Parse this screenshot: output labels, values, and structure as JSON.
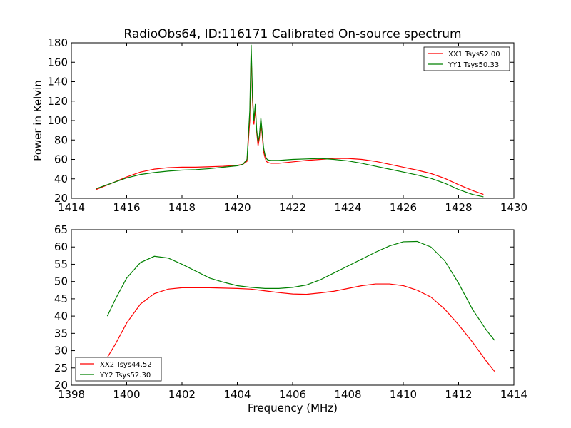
{
  "figure_title": "RadioObs64, ID:116171 Calibrated On-source spectrum",
  "colors": {
    "xx": "#ff0000",
    "yy": "#008000",
    "axis": "#000000"
  },
  "chart_data": [
    {
      "type": "line",
      "title": "RadioObs64, ID:116171 Calibrated On-source spectrum",
      "xlabel": "",
      "ylabel": "Power in Kelvin",
      "xlim": [
        1414,
        1430
      ],
      "ylim": [
        20,
        180
      ],
      "xticks": [
        1414,
        1416,
        1418,
        1420,
        1422,
        1424,
        1426,
        1428,
        1430
      ],
      "yticks": [
        20,
        40,
        60,
        80,
        100,
        120,
        140,
        160,
        180
      ],
      "legend_position": "top-right",
      "grid": false,
      "series": [
        {
          "name": "XX1 Tsys52.00",
          "color": "#ff0000",
          "x": [
            1414.9,
            1415.5,
            1416,
            1416.5,
            1417,
            1417.5,
            1418,
            1418.5,
            1419,
            1419.5,
            1420,
            1420.2,
            1420.35,
            1420.45,
            1420.5,
            1420.55,
            1420.6,
            1420.65,
            1420.7,
            1420.75,
            1420.8,
            1420.85,
            1420.9,
            1420.95,
            1421,
            1421.05,
            1421.1,
            1421.2,
            1421.5,
            1422,
            1422.5,
            1423,
            1423.5,
            1424,
            1424.5,
            1425,
            1425.5,
            1426,
            1426.5,
            1427,
            1427.5,
            1428,
            1428.5,
            1428.9
          ],
          "values": [
            29,
            36,
            42,
            47,
            50,
            51.5,
            52,
            52,
            52.5,
            53,
            54,
            55,
            58,
            100,
            170,
            120,
            96,
            112,
            88,
            74,
            82,
            100,
            85,
            68,
            62,
            58,
            57,
            56,
            56,
            57.5,
            59,
            60,
            61,
            61,
            60,
            58,
            55,
            52,
            49,
            45.5,
            40.5,
            34,
            28,
            24
          ]
        },
        {
          "name": "YY1 Tsys50.33",
          "color": "#008000",
          "x": [
            1414.9,
            1415.5,
            1416,
            1416.5,
            1417,
            1417.5,
            1418,
            1418.5,
            1419,
            1419.5,
            1420,
            1420.2,
            1420.35,
            1420.45,
            1420.5,
            1420.55,
            1420.6,
            1420.65,
            1420.7,
            1420.75,
            1420.8,
            1420.85,
            1420.9,
            1420.95,
            1421,
            1421.05,
            1421.1,
            1421.2,
            1421.5,
            1422,
            1422.5,
            1423,
            1423.5,
            1424,
            1424.5,
            1425,
            1425.5,
            1426,
            1426.5,
            1427,
            1427.5,
            1428,
            1428.5,
            1428.9
          ],
          "values": [
            30,
            36,
            41,
            44.5,
            46.5,
            48,
            49,
            49.5,
            50.5,
            52,
            53.5,
            55,
            60,
            110,
            178,
            125,
            100,
            117,
            90,
            78,
            85,
            103,
            88,
            72,
            65,
            61,
            59.5,
            59,
            59,
            60,
            60.5,
            61,
            60,
            58.5,
            56,
            53,
            50,
            47,
            44,
            40.5,
            35.5,
            29,
            24,
            21.5
          ]
        }
      ]
    },
    {
      "type": "line",
      "title": "",
      "xlabel": "Frequency (MHz)",
      "ylabel": "",
      "xlim": [
        1398,
        1414
      ],
      "ylim": [
        20,
        65
      ],
      "xticks": [
        1398,
        1400,
        1402,
        1404,
        1406,
        1408,
        1410,
        1412,
        1414
      ],
      "yticks": [
        20,
        25,
        30,
        35,
        40,
        45,
        50,
        55,
        60,
        65
      ],
      "legend_position": "bottom-left",
      "grid": false,
      "series": [
        {
          "name": "XX2 Tsys44.52",
          "color": "#ff0000",
          "x": [
            1399.3,
            1399.6,
            1400,
            1400.5,
            1401,
            1401.5,
            1402,
            1402.5,
            1403,
            1403.5,
            1404,
            1404.5,
            1405,
            1405.5,
            1406,
            1406.5,
            1407,
            1407.5,
            1408,
            1408.5,
            1409,
            1409.5,
            1410,
            1410.5,
            1411,
            1411.5,
            1412,
            1412.5,
            1413,
            1413.3
          ],
          "values": [
            28,
            32,
            38,
            43.5,
            46.5,
            47.8,
            48.2,
            48.2,
            48.2,
            48.1,
            48,
            47.8,
            47.3,
            46.8,
            46.4,
            46.3,
            46.7,
            47.2,
            48,
            48.8,
            49.3,
            49.3,
            48.8,
            47.5,
            45.5,
            42,
            37.5,
            32.5,
            27,
            24
          ]
        },
        {
          "name": "YY2 Tsys52.30",
          "color": "#008000",
          "x": [
            1399.3,
            1399.6,
            1400,
            1400.5,
            1401,
            1401.5,
            1402,
            1402.5,
            1403,
            1403.5,
            1404,
            1404.5,
            1405,
            1405.5,
            1406,
            1406.5,
            1407,
            1407.5,
            1408,
            1408.5,
            1409,
            1409.5,
            1410,
            1410.5,
            1411,
            1411.5,
            1412,
            1412.5,
            1413,
            1413.3
          ],
          "values": [
            40,
            45,
            51,
            55.5,
            57.3,
            56.8,
            55,
            53,
            51,
            49.8,
            48.8,
            48.3,
            48,
            48,
            48.3,
            49,
            50.5,
            52.5,
            54.5,
            56.5,
            58.5,
            60.3,
            61.5,
            61.6,
            60,
            56,
            49.5,
            42,
            36,
            33
          ]
        }
      ]
    }
  ]
}
